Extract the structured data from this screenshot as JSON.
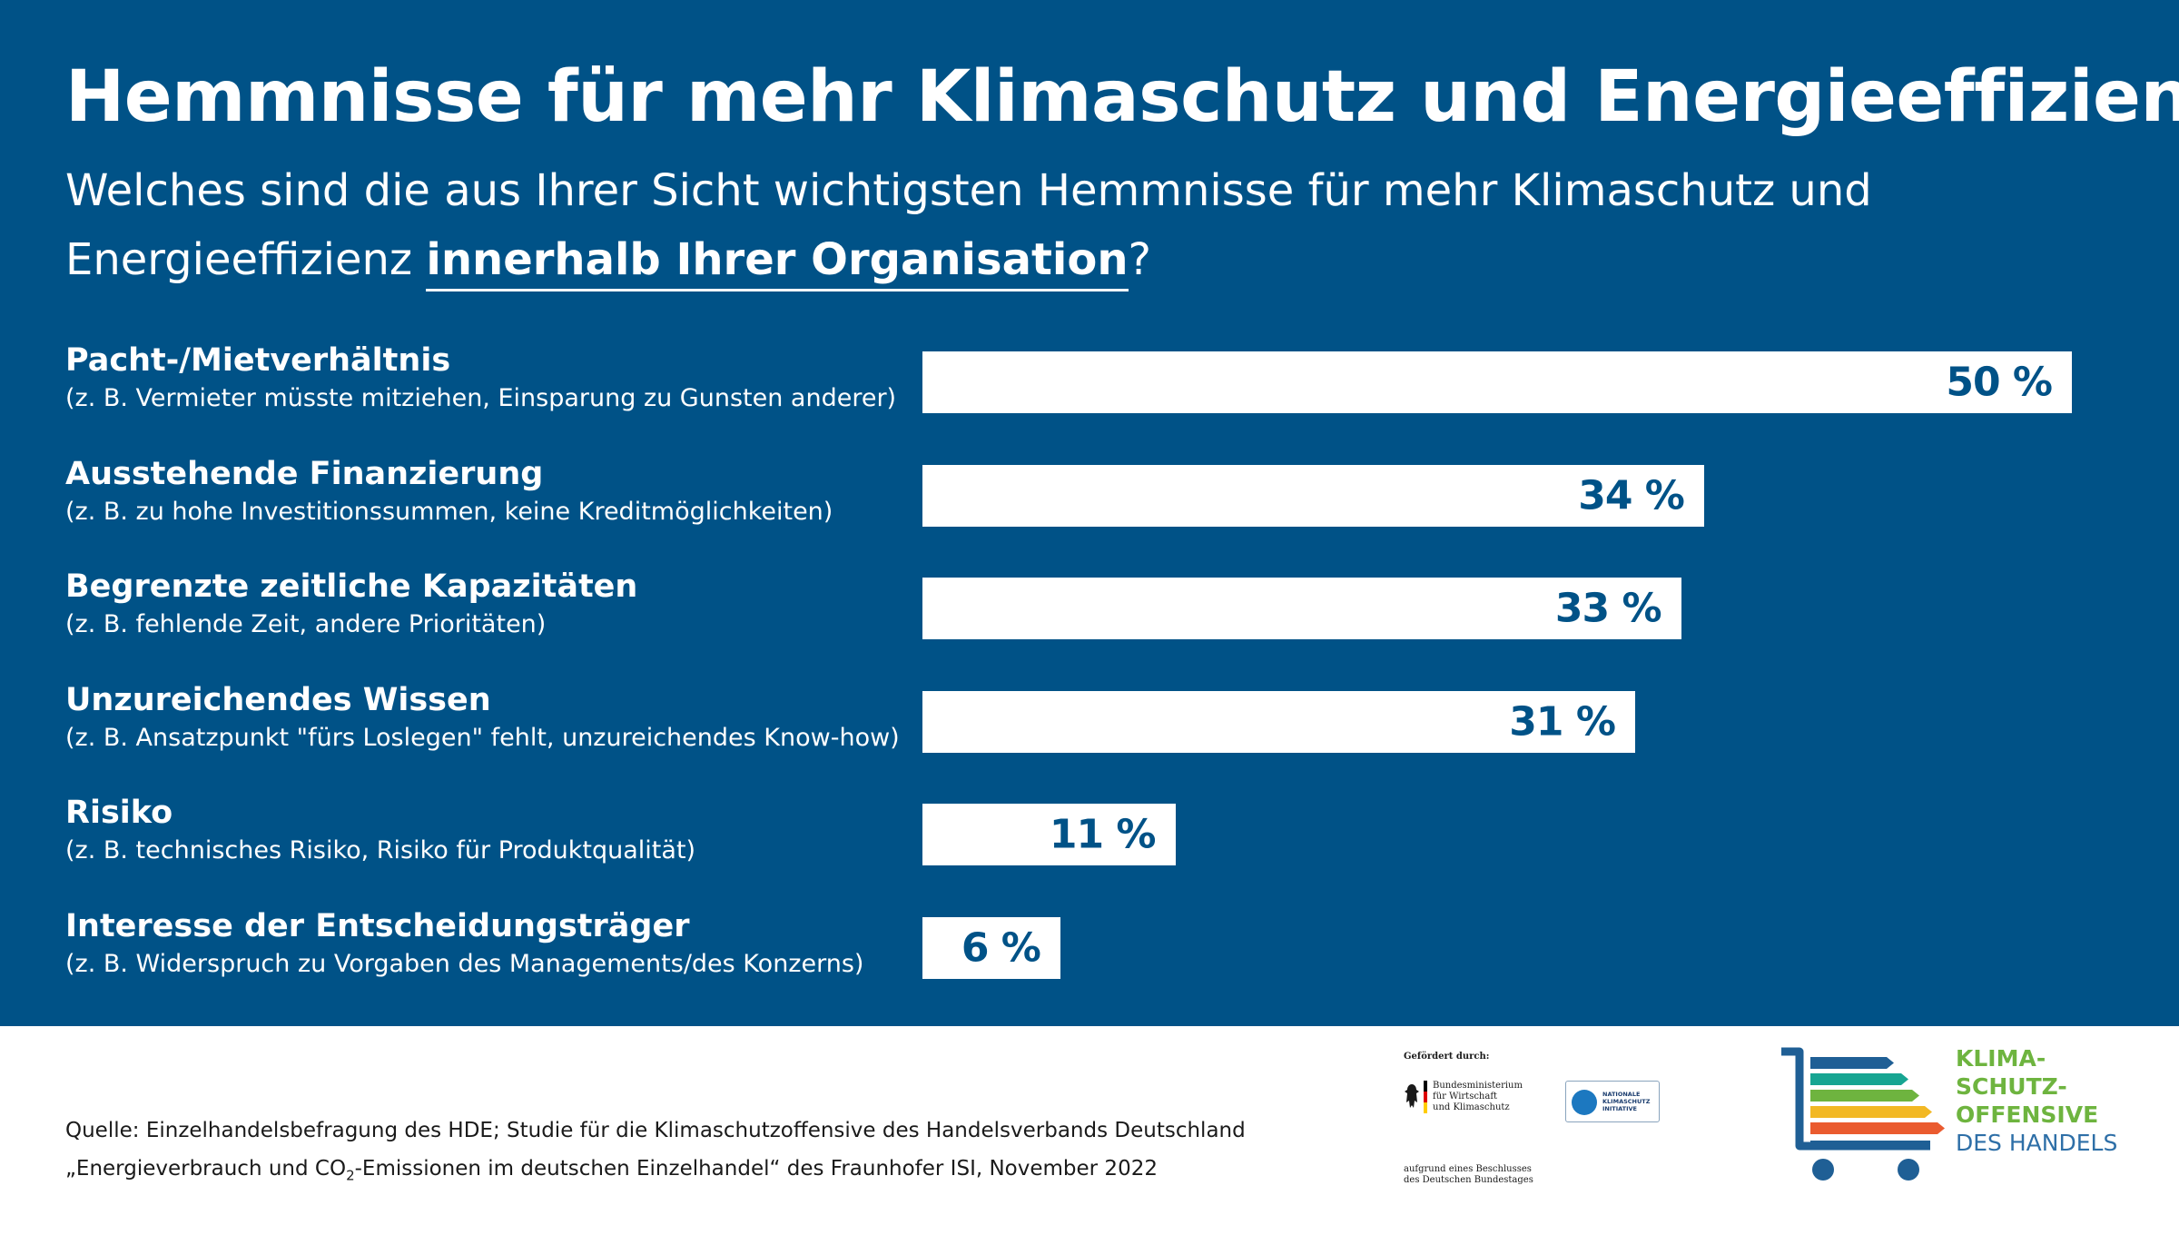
{
  "chart_data": {
    "type": "bar",
    "title": "Hemmnisse für mehr Klimaschutz und Energieeffizienz",
    "subtitle_parts": [
      "Welches sind die aus Ihrer Sicht wichtigsten Hemmnisse für mehr Klimaschutz und Energieeffizienz ",
      "innerhalb Ihrer Organisation",
      "?"
    ],
    "categories": [
      "Pacht-/Mietverhältnis",
      "Ausstehende Finanzierung",
      "Begrenzte zeitliche Kapazitäten",
      "Unzureichendes Wissen",
      "Risiko",
      "Interesse der Entscheidungsträger"
    ],
    "category_notes": [
      "(z. B. Vermieter müsste mitziehen, Einsparung zu Gunsten anderer)",
      "(z. B. zu hohe Investitionssummen, keine Kreditmöglichkeiten)",
      "(z. B. fehlende Zeit, andere Prioritäten)",
      "(z. B. Ansatzpunkt \"fürs Loslegen\" fehlt, unzureichendes Know-how)",
      "(z. B. technisches Risiko, Risiko für Produktqualität)",
      "(z. B. Widerspruch zu Vorgaben des Managements/des Konzerns)"
    ],
    "values": [
      50,
      34,
      33,
      31,
      11,
      6
    ],
    "value_labels": [
      "50 %",
      "34 %",
      "33 %",
      "31 %",
      "11 %",
      "6 %"
    ],
    "unit": "%",
    "orientation": "horizontal",
    "grid": false,
    "legend": "none"
  },
  "source": {
    "line1": "Quelle: Einzelhandelsbefragung des HDE; Studie für die Klimaschutzoffensive des Handelsverbands Deutschland",
    "line2_pre": "„Energieverbrauch und CO",
    "line2_sub": "2",
    "line2_post": "-Emissionen im deutschen Einzelhandel“ des Fraunhofer ISI, November 2022"
  },
  "sponsor": {
    "gefoerdert": "Gefördert durch:",
    "ministry_lines": [
      "Bundesministerium",
      "für Wirtschaft",
      "und Klimaschutz"
    ],
    "nki_lines": [
      "NATIONALE",
      "KLIMASCHUTZ",
      "INITIATIVE"
    ],
    "beschluss_lines": [
      "aufgrund eines Beschlusses",
      "des Deutschen Bundestages"
    ]
  },
  "logo": {
    "lines": [
      "KLIMA-",
      "SCHUTZ-",
      "OFFENSIVE",
      "DES HANDELS"
    ],
    "colors": {
      "cart": "#1f5f95",
      "stripes": [
        "#1f5f95",
        "#17a592",
        "#6eb43f",
        "#f2b824",
        "#ea5b2f"
      ],
      "text_green": "#6eb43f",
      "text_blue": "#2e6fa7"
    }
  },
  "colors": {
    "background": "#005287",
    "bar": "#ffffff",
    "value_text": "#005287"
  }
}
